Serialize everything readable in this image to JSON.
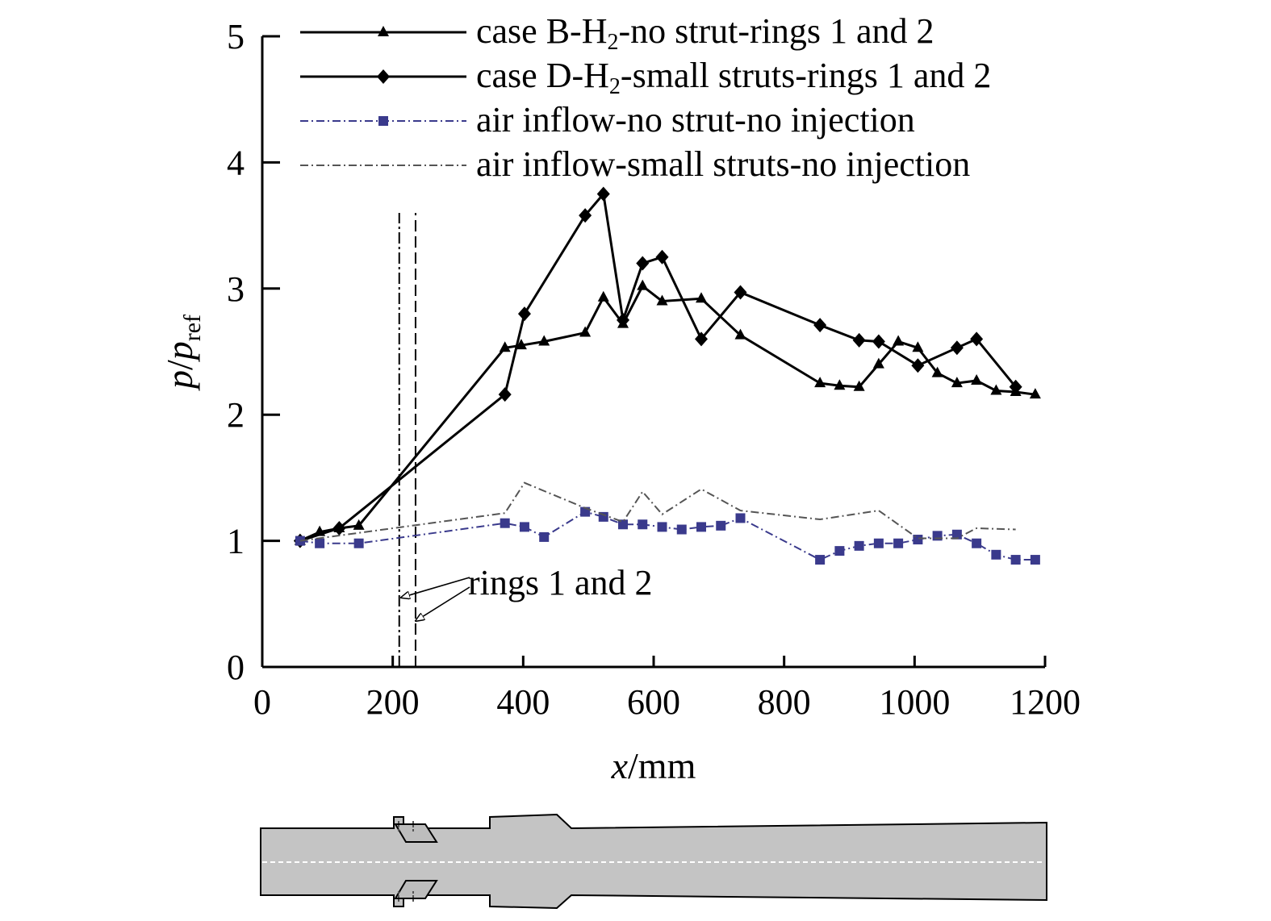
{
  "chart_data": {
    "type": "line",
    "xlabel": "x/mm",
    "ylabel": "p/p_ref",
    "xlim": [
      0,
      1200
    ],
    "ylim": [
      0,
      5
    ],
    "xticks": [
      0,
      200,
      400,
      600,
      800,
      1000,
      1200
    ],
    "yticks": [
      0,
      1,
      2,
      3,
      4,
      5
    ],
    "legend_position": "top",
    "grid": false,
    "series": [
      {
        "name": "case B-H2-no strut-rings 1 and 2",
        "label_parts": [
          "case B-H",
          "2",
          "-no strut-rings 1 and 2"
        ],
        "color": "#000000",
        "line_style": "solid",
        "marker": "triangle",
        "x": [
          58,
          88,
          118,
          148,
          372,
          397,
          432,
          495,
          523,
          553,
          583,
          613,
          673,
          733,
          855,
          885,
          915,
          945,
          975,
          1005,
          1035,
          1065,
          1095,
          1125,
          1155,
          1185
        ],
        "y": [
          1.0,
          1.07,
          1.1,
          1.12,
          2.53,
          2.55,
          2.58,
          2.65,
          2.93,
          2.72,
          3.02,
          2.9,
          2.92,
          2.63,
          2.25,
          2.23,
          2.22,
          2.4,
          2.58,
          2.53,
          2.33,
          2.25,
          2.27,
          2.19,
          2.18,
          2.16
        ]
      },
      {
        "name": "case D-H2-small struts-rings 1 and 2",
        "label_parts": [
          "case D-H",
          "2",
          "-small struts-rings 1 and 2"
        ],
        "color": "#000000",
        "line_style": "solid",
        "marker": "diamond",
        "x": [
          58,
          118,
          372,
          402,
          495,
          523,
          553,
          583,
          613,
          673,
          733,
          855,
          915,
          945,
          1005,
          1065,
          1095,
          1155
        ],
        "y": [
          1.0,
          1.1,
          2.16,
          2.8,
          3.58,
          3.75,
          2.75,
          3.2,
          3.25,
          2.6,
          2.97,
          2.71,
          2.59,
          2.58,
          2.39,
          2.53,
          2.6,
          2.22
        ]
      },
      {
        "name": "air inflow-no strut-no injection",
        "label_parts": [
          "air inflow-no strut-no injection"
        ],
        "color": "#3a3a8c",
        "line_style": "dashdot",
        "marker": "square",
        "x": [
          58,
          88,
          148,
          372,
          402,
          432,
          495,
          523,
          553,
          583,
          613,
          643,
          673,
          703,
          733,
          855,
          885,
          915,
          945,
          975,
          1005,
          1035,
          1065,
          1095,
          1125,
          1155,
          1185
        ],
        "y": [
          1.0,
          0.98,
          0.98,
          1.14,
          1.11,
          1.03,
          1.23,
          1.19,
          1.13,
          1.13,
          1.11,
          1.09,
          1.11,
          1.12,
          1.18,
          0.85,
          0.92,
          0.96,
          0.98,
          0.98,
          1.01,
          1.04,
          1.05,
          0.98,
          0.89,
          0.85,
          0.85
        ]
      },
      {
        "name": "air inflow-small struts-no injection",
        "label_parts": [
          "air inflow-small struts-no injection"
        ],
        "color": "#555555",
        "line_style": "dashdot",
        "marker": "none",
        "x": [
          58,
          372,
          402,
          495,
          553,
          583,
          613,
          673,
          733,
          855,
          945,
          1005,
          1065,
          1095,
          1155
        ],
        "y": [
          1.0,
          1.22,
          1.46,
          1.26,
          1.15,
          1.39,
          1.21,
          1.41,
          1.24,
          1.17,
          1.24,
          1.02,
          1.02,
          1.1,
          1.09
        ]
      }
    ],
    "annotations": [
      {
        "text": "rings 1 and 2",
        "ring_x": [
          210,
          235
        ],
        "ring_ymax": 3.6
      }
    ]
  }
}
